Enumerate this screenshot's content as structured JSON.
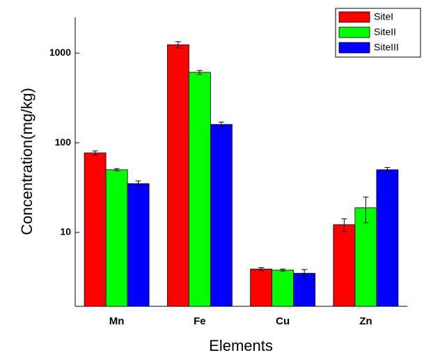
{
  "chart_data": {
    "type": "bar",
    "x_label": "Elements",
    "y_label": "Concentration(mg/kg)",
    "categories": [
      "Mn",
      "Fe",
      "Cu",
      "Zn"
    ],
    "series": [
      {
        "name": "SiteI",
        "color": "#ff0000",
        "values": [
          77,
          1240,
          3.9,
          12.2
        ],
        "errors": [
          4,
          100,
          0.15,
          2
        ]
      },
      {
        "name": "SiteII",
        "color": "#00ff00",
        "values": [
          50,
          610,
          3.8,
          18.8
        ],
        "errors": [
          1.5,
          30,
          0.1,
          6
        ]
      },
      {
        "name": "SiteIII",
        "color": "#0000ff",
        "values": [
          35,
          160,
          3.5,
          50
        ],
        "errors": [
          2.5,
          10,
          0.35,
          3
        ]
      }
    ],
    "log_scale": true,
    "ylim": [
      1.5,
      2500
    ],
    "yticks": [
      10,
      100,
      1000
    ],
    "legend": "top-right"
  }
}
